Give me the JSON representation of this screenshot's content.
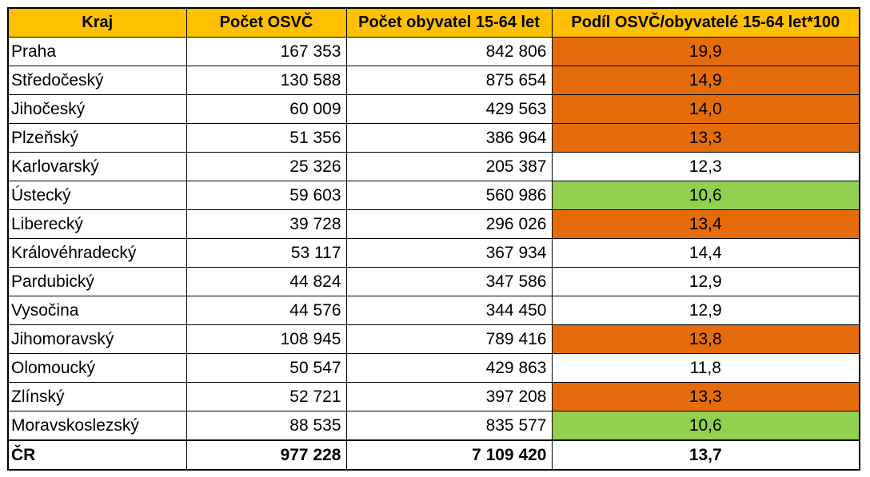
{
  "colors": {
    "header": "#ffc000",
    "high": "#e46c0a",
    "low": "#92d050",
    "none": "#ffffff"
  },
  "headers": [
    "Kraj",
    "Počet OSVČ",
    "Počet obyvatel 15-64 let",
    "Podíl OSVČ/obyvatelé 15-64 let*100"
  ],
  "rows": [
    {
      "kraj": "Praha",
      "osvc": "167 353",
      "obyv": "842 806",
      "podil": "19,9",
      "hl": "high"
    },
    {
      "kraj": "Středočeský",
      "osvc": "130 588",
      "obyv": "875 654",
      "podil": "14,9",
      "hl": "high"
    },
    {
      "kraj": "Jihočeský",
      "osvc": "60 009",
      "obyv": "429 563",
      "podil": "14,0",
      "hl": "high"
    },
    {
      "kraj": "Plzeňský",
      "osvc": "51 356",
      "obyv": "386 964",
      "podil": "13,3",
      "hl": "high"
    },
    {
      "kraj": "Karlovarský",
      "osvc": "25 326",
      "obyv": "205 387",
      "podil": "12,3",
      "hl": "none"
    },
    {
      "kraj": "Ústecký",
      "osvc": "59 603",
      "obyv": "560 986",
      "podil": "10,6",
      "hl": "low"
    },
    {
      "kraj": "Liberecký",
      "osvc": "39 728",
      "obyv": "296 026",
      "podil": "13,4",
      "hl": "high"
    },
    {
      "kraj": "Královéhradecký",
      "osvc": "53 117",
      "obyv": "367 934",
      "podil": "14,4",
      "hl": "none"
    },
    {
      "kraj": "Pardubický",
      "osvc": "44 824",
      "obyv": "347 586",
      "podil": "12,9",
      "hl": "none"
    },
    {
      "kraj": "Vysočina",
      "osvc": "44 576",
      "obyv": "344 450",
      "podil": "12,9",
      "hl": "none"
    },
    {
      "kraj": "Jihomoravský",
      "osvc": "108 945",
      "obyv": "789 416",
      "podil": "13,8",
      "hl": "high"
    },
    {
      "kraj": "Olomoucký",
      "osvc": "50 547",
      "obyv": "429 863",
      "podil": "11,8",
      "hl": "none"
    },
    {
      "kraj": "Zlínský",
      "osvc": "52 721",
      "obyv": "397 208",
      "podil": "13,3",
      "hl": "high"
    },
    {
      "kraj": "Moravskoslezský",
      "osvc": "88 535",
      "obyv": "835 577",
      "podil": "10,6",
      "hl": "low"
    }
  ],
  "total": {
    "kraj": "ČR",
    "osvc": "977 228",
    "obyv": "7 109 420",
    "podil": "13,7"
  }
}
